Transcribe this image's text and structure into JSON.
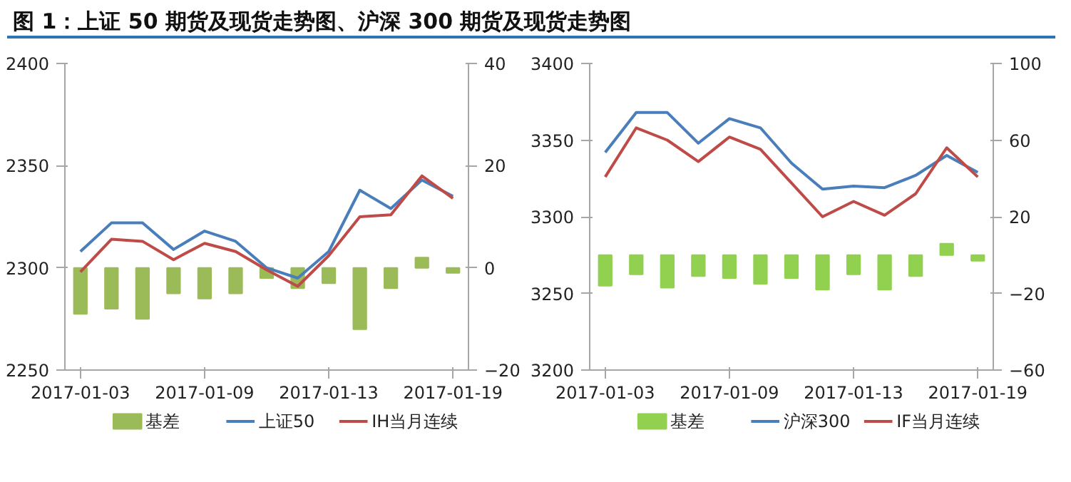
{
  "chart_data": [
    {
      "type": "line",
      "title": "图 1：上证 50 期货及现货走势图、沪深 300 期货及现货走势图",
      "categories": [
        "2017-01-03",
        null,
        null,
        null,
        "2017-01-09",
        null,
        null,
        null,
        "2017-01-13",
        null,
        null,
        null,
        "2017-01-19"
      ],
      "series": [
        {
          "name": "基差",
          "type": "bar",
          "axis": "y2",
          "color": "#9bbb59",
          "values": [
            -9,
            -8,
            -10,
            -5,
            -6,
            -5,
            -2,
            -4,
            -3,
            -12,
            -4,
            2,
            -1
          ]
        },
        {
          "name": "上证50",
          "color": "#4a7ebb",
          "values": [
            2308,
            2322,
            2322,
            2309,
            2318,
            2313,
            2300,
            2295,
            2308,
            2338,
            2329,
            2343,
            2335
          ]
        },
        {
          "name": "IH当月连续",
          "color": "#be4b48",
          "values": [
            2298,
            2314,
            2313,
            2304,
            2312,
            2308,
            2299,
            2291,
            2306,
            2325,
            2326,
            2345,
            2334
          ]
        }
      ],
      "ylim": [
        2250,
        2400
      ],
      "yticks": [
        2250,
        2300,
        2350,
        2400
      ],
      "y2lim": [
        -20,
        40
      ],
      "y2ticks": [
        -20,
        0,
        20,
        40
      ],
      "legend": "bottom"
    },
    {
      "type": "line",
      "categories": [
        "2017-01-03",
        null,
        null,
        null,
        "2017-01-09",
        null,
        null,
        null,
        "2017-01-13",
        null,
        null,
        null,
        "2017-01-19"
      ],
      "series": [
        {
          "name": "基差",
          "type": "bar",
          "axis": "y2",
          "color": "#92d050",
          "values": [
            -16,
            -10,
            -17,
            -11,
            -12,
            -15,
            -12,
            -18,
            -10,
            -18,
            -11,
            6,
            -3
          ]
        },
        {
          "name": "沪深300",
          "color": "#4a7ebb",
          "values": [
            3342,
            3368,
            3368,
            3348,
            3364,
            3358,
            3335,
            3318,
            3320,
            3319,
            3327,
            3340,
            3329
          ]
        },
        {
          "name": "IF当月连续",
          "color": "#be4b48",
          "values": [
            3326,
            3358,
            3350,
            3336,
            3352,
            3344,
            3322,
            3300,
            3310,
            3301,
            3315,
            3345,
            3326
          ]
        }
      ],
      "ylim": [
        3200,
        3400
      ],
      "yticks": [
        3200,
        3250,
        3300,
        3350,
        3400
      ],
      "y2lim": [
        -60,
        100
      ],
      "y2ticks": [
        -60,
        -20,
        20,
        60,
        100
      ],
      "legend": "bottom"
    }
  ]
}
